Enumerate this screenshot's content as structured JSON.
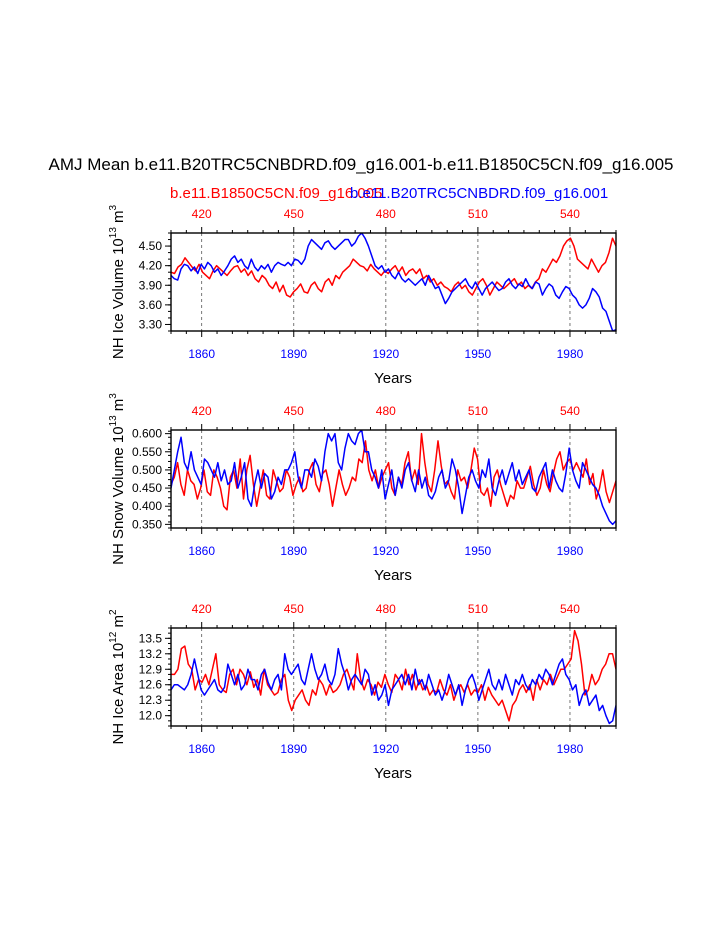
{
  "title": "AMJ Mean b.e11.B20TRC5CNBDRD.f09_g16.001-b.e11.B1850C5CN.f09_g16.005",
  "legend": {
    "red": "b.e11.B1850C5CN.f09_g16.005",
    "blue": "b.e11.B20TRC5CNBDRD.f09_g16.001"
  },
  "colors": {
    "red": "#ff0000",
    "blue": "#0000ff",
    "axis": "#000000",
    "dash": "#555555"
  },
  "chart_data": [
    {
      "type": "line",
      "ylabel_main": "NH Ice Volume 10",
      "ylabel_exp": "13",
      "ylabel_unit": " m",
      "ylabel_unit_exp": "3",
      "xlabel": "Years",
      "ylim": [
        3.2,
        4.7
      ],
      "yticks": [
        "4.50",
        "4.20",
        "3.90",
        "3.60",
        "3.30"
      ],
      "ytick_values": [
        4.5,
        4.2,
        3.9,
        3.6,
        3.3
      ],
      "bottom_ticks": [
        "1860",
        "1890",
        "1920",
        "1950",
        "1980"
      ],
      "top_ticks": [
        "420",
        "450",
        "480",
        "510",
        "540"
      ],
      "series": [
        {
          "name": "b.e11.B1850C5CN.f09_g16.005",
          "color": "red",
          "values": [
            4.1,
            4.08,
            4.18,
            4.22,
            4.32,
            4.25,
            4.18,
            4.12,
            4.22,
            4.1,
            4.05,
            4.0,
            4.12,
            4.2,
            4.15,
            4.1,
            4.05,
            4.12,
            4.18,
            4.2,
            4.1,
            4.15,
            4.05,
            4.12,
            4.0,
            3.95,
            4.05,
            4.0,
            3.9,
            3.85,
            3.95,
            3.8,
            3.9,
            3.75,
            3.72,
            3.8,
            3.85,
            3.92,
            3.8,
            3.78,
            3.9,
            3.95,
            3.85,
            3.8,
            3.95,
            4.0,
            3.9,
            4.05,
            4.0,
            4.1,
            4.15,
            4.2,
            4.3,
            4.25,
            4.2,
            4.18,
            4.12,
            4.22,
            4.15,
            4.1,
            4.05,
            4.12,
            4.08,
            4.15,
            4.2,
            4.1,
            4.18,
            4.05,
            4.12,
            4.15,
            4.08,
            4.15,
            4.0,
            4.05,
            3.95,
            4.0,
            3.9,
            3.95,
            3.88,
            3.85,
            3.8,
            3.9,
            3.95,
            3.85,
            3.9,
            3.8,
            3.75,
            3.85,
            3.95,
            4.0,
            3.9,
            3.75,
            3.85,
            3.95,
            3.9,
            3.85,
            3.9,
            3.95,
            4.0,
            3.9,
            3.95,
            3.85,
            3.9,
            3.85,
            3.95,
            4.0,
            4.15,
            4.1,
            4.2,
            4.3,
            4.25,
            4.35,
            4.5,
            4.58,
            4.62,
            4.5,
            4.3,
            4.25,
            4.2,
            4.15,
            4.3,
            4.2,
            4.1,
            4.2,
            4.25,
            4.4,
            4.62,
            4.5
          ]
        },
        {
          "name": "b.e11.B20TRC5CNBDRD.f09_g16.001",
          "color": "blue",
          "values": [
            4.05,
            4.0,
            3.98,
            4.15,
            4.22,
            4.2,
            4.12,
            4.18,
            4.08,
            4.22,
            4.15,
            4.25,
            4.2,
            4.1,
            4.15,
            4.05,
            4.12,
            4.2,
            4.3,
            4.35,
            4.25,
            4.3,
            4.2,
            4.15,
            4.3,
            4.18,
            4.12,
            4.2,
            4.15,
            4.22,
            4.1,
            4.2,
            4.25,
            4.22,
            4.2,
            4.25,
            4.2,
            4.3,
            4.28,
            4.22,
            4.3,
            4.5,
            4.6,
            4.55,
            4.5,
            4.45,
            4.55,
            4.58,
            4.5,
            4.45,
            4.5,
            4.55,
            4.6,
            4.6,
            4.5,
            4.55,
            4.65,
            4.7,
            4.62,
            4.5,
            4.35,
            4.2,
            4.15,
            4.2,
            4.1,
            4.15,
            4.05,
            4.0,
            4.1,
            4.0,
            3.95,
            4.0,
            3.95,
            3.9,
            3.95,
            4.0,
            3.9,
            4.05,
            3.95,
            3.85,
            3.88,
            3.75,
            3.62,
            3.7,
            3.8,
            3.85,
            3.9,
            3.95,
            4.0,
            3.9,
            3.85,
            3.95,
            3.85,
            3.75,
            3.85,
            3.9,
            3.95,
            3.88,
            3.82,
            3.85,
            3.95,
            4.0,
            3.9,
            3.85,
            3.92,
            3.88,
            4.0,
            3.9,
            3.85,
            3.95,
            3.92,
            3.75,
            3.85,
            3.92,
            3.88,
            3.75,
            3.7,
            3.8,
            3.88,
            3.85,
            3.75,
            3.7,
            3.6,
            3.55,
            3.6,
            3.7,
            3.85,
            3.8,
            3.72,
            3.55,
            3.5,
            3.35,
            3.2,
            3.22
          ]
        }
      ]
    },
    {
      "type": "line",
      "ylabel_main": "NH Snow Volume 10",
      "ylabel_exp": "13",
      "ylabel_unit": " m",
      "ylabel_unit_exp": "3",
      "xlabel": "Years",
      "ylim": [
        0.34,
        0.61
      ],
      "yticks": [
        "0.600",
        "0.550",
        "0.500",
        "0.450",
        "0.400",
        "0.350"
      ],
      "ytick_values": [
        0.6,
        0.55,
        0.5,
        0.45,
        0.4,
        0.35
      ],
      "bottom_ticks": [
        "1860",
        "1890",
        "1920",
        "1950",
        "1980"
      ],
      "top_ticks": [
        "420",
        "450",
        "480",
        "510",
        "540"
      ],
      "series": [
        {
          "name": "b.e11.B1850C5CN.f09_g16.005",
          "color": "red",
          "values": [
            0.46,
            0.48,
            0.52,
            0.46,
            0.43,
            0.5,
            0.47,
            0.46,
            0.42,
            0.45,
            0.5,
            0.44,
            0.43,
            0.5,
            0.48,
            0.45,
            0.4,
            0.39,
            0.48,
            0.5,
            0.45,
            0.53,
            0.42,
            0.5,
            0.54,
            0.46,
            0.4,
            0.45,
            0.5,
            0.43,
            0.42,
            0.5,
            0.47,
            0.44,
            0.45,
            0.5,
            0.48,
            0.43,
            0.46,
            0.48,
            0.44,
            0.45,
            0.5,
            0.52,
            0.46,
            0.44,
            0.49,
            0.5,
            0.46,
            0.4,
            0.45,
            0.5,
            0.46,
            0.43,
            0.45,
            0.48,
            0.47,
            0.53,
            0.52,
            0.58,
            0.5,
            0.47,
            0.5,
            0.45,
            0.48,
            0.5,
            0.52,
            0.45,
            0.43,
            0.48,
            0.46,
            0.52,
            0.55,
            0.47,
            0.5,
            0.46,
            0.6,
            0.52,
            0.46,
            0.44,
            0.5,
            0.58,
            0.51,
            0.46,
            0.47,
            0.44,
            0.42,
            0.5,
            0.47,
            0.48,
            0.45,
            0.5,
            0.56,
            0.53,
            0.44,
            0.43,
            0.45,
            0.4,
            0.48,
            0.5,
            0.46,
            0.43,
            0.4,
            0.43,
            0.42,
            0.47,
            0.45,
            0.45,
            0.48,
            0.51,
            0.46,
            0.43,
            0.45,
            0.5,
            0.46,
            0.44,
            0.49,
            0.53,
            0.55,
            0.5,
            0.52,
            0.53,
            0.5,
            0.52,
            0.5,
            0.48,
            0.53,
            0.46,
            0.49,
            0.42,
            0.45,
            0.5,
            0.44,
            0.41,
            0.44,
            0.47
          ]
        },
        {
          "name": "b.e11.B20TRC5CNBDRD.f09_g16.001",
          "color": "blue",
          "values": [
            0.45,
            0.5,
            0.55,
            0.59,
            0.52,
            0.5,
            0.55,
            0.5,
            0.48,
            0.46,
            0.53,
            0.52,
            0.5,
            0.48,
            0.52,
            0.47,
            0.5,
            0.46,
            0.47,
            0.52,
            0.45,
            0.48,
            0.52,
            0.42,
            0.4,
            0.46,
            0.5,
            0.45,
            0.49,
            0.48,
            0.42,
            0.44,
            0.48,
            0.46,
            0.5,
            0.5,
            0.52,
            0.55,
            0.48,
            0.45,
            0.5,
            0.5,
            0.48,
            0.53,
            0.51,
            0.47,
            0.55,
            0.6,
            0.58,
            0.6,
            0.52,
            0.5,
            0.56,
            0.6,
            0.58,
            0.57,
            0.6,
            0.61,
            0.55,
            0.55,
            0.5,
            0.48,
            0.45,
            0.5,
            0.42,
            0.46,
            0.5,
            0.43,
            0.48,
            0.45,
            0.5,
            0.52,
            0.47,
            0.44,
            0.5,
            0.45,
            0.48,
            0.43,
            0.42,
            0.44,
            0.48,
            0.5,
            0.45,
            0.47,
            0.53,
            0.5,
            0.45,
            0.38,
            0.43,
            0.48,
            0.5,
            0.47,
            0.45,
            0.5,
            0.48,
            0.53,
            0.45,
            0.43,
            0.47,
            0.5,
            0.46,
            0.49,
            0.52,
            0.47,
            0.5,
            0.46,
            0.48,
            0.5,
            0.45,
            0.44,
            0.48,
            0.5,
            0.52,
            0.45,
            0.5,
            0.47,
            0.45,
            0.44,
            0.49,
            0.56,
            0.5,
            0.47,
            0.45,
            0.52,
            0.5,
            0.48,
            0.46,
            0.45,
            0.43,
            0.4,
            0.38,
            0.36,
            0.35,
            0.36
          ]
        }
      ]
    },
    {
      "type": "line",
      "ylabel_main": "NH Ice Area 10",
      "ylabel_exp": "12",
      "ylabel_unit": " m",
      "ylabel_unit_exp": "2",
      "xlabel": "Years",
      "ylim": [
        11.8,
        13.7
      ],
      "yticks": [
        "13.5",
        "13.2",
        "12.9",
        "12.6",
        "12.3",
        "12.0"
      ],
      "ytick_values": [
        13.5,
        13.2,
        12.9,
        12.6,
        12.3,
        12.0
      ],
      "bottom_ticks": [
        "1860",
        "1890",
        "1920",
        "1950",
        "1980"
      ],
      "top_ticks": [
        "420",
        "450",
        "480",
        "510",
        "540"
      ],
      "series": [
        {
          "name": "b.e11.B1850C5CN.f09_g16.005",
          "color": "red",
          "values": [
            12.8,
            12.8,
            12.9,
            13.3,
            13.35,
            13.0,
            12.9,
            12.5,
            12.7,
            12.65,
            12.8,
            12.6,
            12.9,
            13.2,
            12.6,
            12.5,
            12.45,
            12.8,
            12.9,
            12.6,
            12.9,
            12.8,
            12.6,
            12.85,
            12.55,
            12.7,
            12.4,
            12.9,
            12.6,
            12.5,
            12.4,
            12.45,
            12.7,
            12.8,
            12.3,
            12.1,
            12.3,
            12.4,
            12.5,
            12.3,
            12.2,
            12.5,
            12.4,
            12.7,
            12.6,
            12.4,
            12.6,
            12.45,
            12.5,
            12.6,
            12.8,
            12.9,
            12.7,
            12.5,
            13.2,
            12.7,
            12.5,
            12.7,
            12.6,
            12.4,
            12.65,
            12.55,
            12.8,
            12.6,
            12.45,
            12.8,
            12.7,
            12.5,
            12.9,
            12.6,
            12.8,
            12.5,
            12.7,
            12.5,
            12.6,
            12.4,
            12.5,
            12.45,
            12.7,
            12.5,
            12.4,
            12.6,
            12.3,
            12.5,
            12.6,
            12.45,
            12.6,
            12.4,
            12.5,
            12.45,
            12.6,
            12.3,
            12.55,
            12.4,
            12.3,
            12.2,
            12.3,
            12.1,
            11.9,
            12.2,
            12.3,
            12.5,
            12.6,
            12.45,
            12.6,
            12.3,
            12.7,
            12.5,
            12.7,
            12.6,
            12.8,
            12.6,
            12.75,
            12.9,
            12.9,
            13.0,
            13.1,
            13.65,
            13.45,
            13.0,
            12.4,
            12.5,
            12.8,
            12.6,
            12.7,
            12.9,
            13.0,
            13.2,
            13.2,
            12.9
          ]
        },
        {
          "name": "b.e11.B20TRC5CNBDRD.f09_g16.001",
          "color": "blue",
          "values": [
            12.5,
            12.6,
            12.6,
            12.55,
            12.5,
            12.6,
            12.8,
            13.1,
            12.8,
            12.5,
            12.4,
            12.5,
            12.6,
            12.7,
            12.5,
            12.45,
            12.55,
            13.0,
            12.8,
            12.6,
            12.8,
            12.5,
            12.6,
            12.9,
            12.7,
            12.7,
            12.5,
            12.8,
            12.9,
            12.65,
            12.5,
            12.7,
            12.8,
            12.5,
            13.2,
            12.9,
            12.8,
            12.9,
            13.0,
            12.7,
            12.6,
            12.9,
            13.2,
            12.9,
            12.7,
            12.8,
            13.0,
            12.7,
            12.6,
            12.8,
            13.3,
            13.0,
            12.8,
            12.5,
            12.7,
            12.8,
            12.7,
            12.6,
            12.9,
            12.8,
            12.4,
            12.6,
            12.3,
            12.4,
            12.6,
            12.2,
            12.5,
            12.6,
            12.7,
            12.8,
            12.6,
            12.8,
            12.5,
            12.9,
            12.6,
            12.7,
            12.5,
            12.8,
            12.6,
            12.4,
            12.5,
            12.3,
            12.5,
            12.8,
            12.6,
            12.4,
            12.6,
            12.2,
            12.5,
            12.7,
            12.8,
            12.6,
            12.3,
            12.5,
            12.7,
            12.9,
            12.6,
            12.5,
            12.7,
            12.5,
            12.8,
            12.6,
            12.4,
            12.7,
            12.6,
            12.8,
            12.6,
            12.5,
            12.7,
            12.6,
            12.8,
            12.7,
            12.9,
            12.8,
            12.6,
            12.8,
            13.0,
            13.1,
            12.8,
            12.7,
            12.5,
            12.6,
            12.2,
            12.4,
            12.5,
            12.2,
            12.3,
            12.4,
            12.1,
            12.2,
            12.0,
            11.85,
            11.9,
            12.2
          ]
        }
      ]
    }
  ]
}
